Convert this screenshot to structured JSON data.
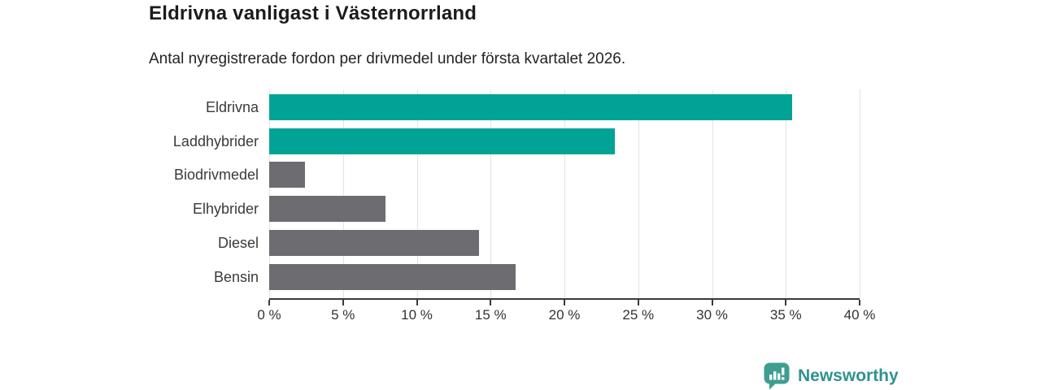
{
  "header": {
    "title": "Eldrivna vanligast i Västernorrland",
    "subtitle": "Antal nyregistrerade fordon per drivmedel under första kvartalet 2026."
  },
  "chart_data": {
    "type": "bar",
    "orientation": "horizontal",
    "title": "Eldrivna vanligast i Västernorrland",
    "subtitle": "Antal nyregistrerade fordon per drivmedel under första kvartalet 2026.",
    "categories": [
      "Eldrivna",
      "Laddhybrider",
      "Biodrivmedel",
      "Elhybrider",
      "Diesel",
      "Bensin"
    ],
    "values": [
      35.4,
      23.4,
      2.4,
      7.9,
      14.2,
      16.7
    ],
    "unit": "%",
    "xlim": [
      0,
      40
    ],
    "xticks": [
      0,
      5,
      10,
      15,
      20,
      25,
      30,
      35,
      40
    ],
    "xtick_format": "{v} %",
    "grid": true,
    "legend": "none",
    "bar_colors": [
      "#00a396",
      "#00a396",
      "#6c6c71",
      "#6c6c71",
      "#6c6c71",
      "#6c6c71"
    ],
    "accent_color": "#00a396",
    "neutral_color": "#6c6c71"
  },
  "branding": {
    "name": "Newsworthy",
    "logo_icon": "newsworthy-bar-chart-bubble-icon",
    "icon_color": "#3f9e92",
    "text_color": "#2f938d"
  }
}
